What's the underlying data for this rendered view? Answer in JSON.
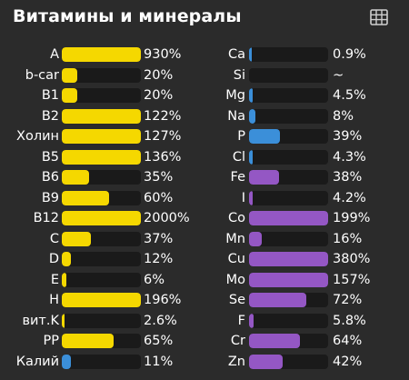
{
  "header": {
    "title": "Витамины и минералы",
    "table_icon": "table-grid-icon"
  },
  "colors": {
    "vitamin": "#f5d800",
    "mineral": "#9457c4",
    "low": "#3b8fd9",
    "track": "#1a1a1a",
    "background": "#2b2b2b"
  },
  "vitamins": [
    {
      "label": "A",
      "value": "930%",
      "fill": 1.0,
      "kind": "vitamin"
    },
    {
      "label": "b-car",
      "value": "20%",
      "fill": 0.2,
      "kind": "vitamin"
    },
    {
      "label": "B1",
      "value": "20%",
      "fill": 0.2,
      "kind": "vitamin"
    },
    {
      "label": "B2",
      "value": "122%",
      "fill": 1.0,
      "kind": "vitamin"
    },
    {
      "label": "Холин",
      "value": "127%",
      "fill": 1.0,
      "kind": "vitamin"
    },
    {
      "label": "B5",
      "value": "136%",
      "fill": 1.0,
      "kind": "vitamin"
    },
    {
      "label": "B6",
      "value": "35%",
      "fill": 0.35,
      "kind": "vitamin"
    },
    {
      "label": "B9",
      "value": "60%",
      "fill": 0.6,
      "kind": "vitamin"
    },
    {
      "label": "B12",
      "value": "2000%",
      "fill": 1.0,
      "kind": "vitamin"
    },
    {
      "label": "C",
      "value": "37%",
      "fill": 0.37,
      "kind": "vitamin"
    },
    {
      "label": "D",
      "value": "12%",
      "fill": 0.12,
      "kind": "vitamin"
    },
    {
      "label": "E",
      "value": "6%",
      "fill": 0.06,
      "kind": "vitamin"
    },
    {
      "label": "H",
      "value": "196%",
      "fill": 1.0,
      "kind": "vitamin"
    },
    {
      "label": "вит.K",
      "value": "2.6%",
      "fill": 0.026,
      "kind": "vitamin"
    },
    {
      "label": "PP",
      "value": "65%",
      "fill": 0.65,
      "kind": "vitamin"
    },
    {
      "label": "Калий",
      "value": "11%",
      "fill": 0.11,
      "kind": "low"
    }
  ],
  "minerals": [
    {
      "label": "Ca",
      "value": "0.9%",
      "fill": 0.009,
      "kind": "low"
    },
    {
      "label": "Si",
      "value": "~",
      "fill": 0,
      "kind": "low"
    },
    {
      "label": "Mg",
      "value": "4.5%",
      "fill": 0.045,
      "kind": "low"
    },
    {
      "label": "Na",
      "value": "8%",
      "fill": 0.08,
      "kind": "low"
    },
    {
      "label": "P",
      "value": "39%",
      "fill": 0.39,
      "kind": "low"
    },
    {
      "label": "Cl",
      "value": "4.3%",
      "fill": 0.043,
      "kind": "low"
    },
    {
      "label": "Fe",
      "value": "38%",
      "fill": 0.38,
      "kind": "mineral"
    },
    {
      "label": "I",
      "value": "4.2%",
      "fill": 0.042,
      "kind": "mineral"
    },
    {
      "label": "Co",
      "value": "199%",
      "fill": 1.0,
      "kind": "mineral"
    },
    {
      "label": "Mn",
      "value": "16%",
      "fill": 0.16,
      "kind": "mineral"
    },
    {
      "label": "Cu",
      "value": "380%",
      "fill": 1.0,
      "kind": "mineral"
    },
    {
      "label": "Mo",
      "value": "157%",
      "fill": 1.0,
      "kind": "mineral"
    },
    {
      "label": "Se",
      "value": "72%",
      "fill": 0.72,
      "kind": "mineral"
    },
    {
      "label": "F",
      "value": "5.8%",
      "fill": 0.058,
      "kind": "mineral"
    },
    {
      "label": "Cr",
      "value": "64%",
      "fill": 0.64,
      "kind": "mineral"
    },
    {
      "label": "Zn",
      "value": "42%",
      "fill": 0.42,
      "kind": "mineral"
    }
  ]
}
